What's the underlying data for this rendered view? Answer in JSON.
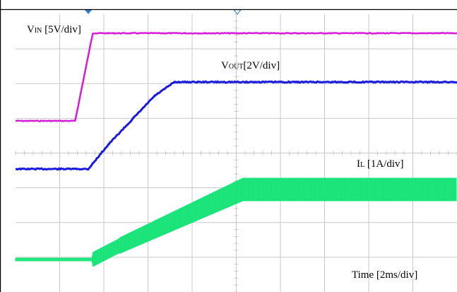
{
  "chart_data": {
    "type": "line",
    "title": "",
    "x_unit": "ms",
    "x_range": [
      0,
      20
    ],
    "grid": true,
    "grid_divisions": {
      "x": 10,
      "y": 8
    },
    "series": [
      {
        "name": "VIN",
        "color": "#d81bd8",
        "scale_per_div": "5V/div",
        "points": [
          [
            0,
            0
          ],
          [
            2.7,
            0
          ],
          [
            3.5,
            5
          ],
          [
            20,
            5
          ]
        ]
      },
      {
        "name": "VOUT",
        "color": "#1a1ae0",
        "scale_per_div": "2V/div",
        "points": [
          [
            0,
            0
          ],
          [
            3.3,
            0
          ],
          [
            4.2,
            1.4
          ],
          [
            6.3,
            4.2
          ],
          [
            7.2,
            5
          ],
          [
            20,
            5
          ]
        ]
      },
      {
        "name": "IL",
        "color": "#1ee87e",
        "scale_per_div": "1A/div",
        "points": [
          [
            0,
            0
          ],
          [
            3.5,
            0
          ],
          [
            4.7,
            0.45
          ],
          [
            10.3,
            2.3
          ],
          [
            20,
            2.3
          ]
        ]
      }
    ]
  },
  "labels": {
    "vin_main": "V",
    "vin_sub": "IN",
    "vin_rest": " [5V/div]",
    "vout_main": "V",
    "vout_sub": "OUT",
    "vout_rest": "[2V/div]",
    "il_main": "I",
    "il_sub": "L",
    "il_rest": " [1A/div]",
    "time": "Time [2ms/div]"
  },
  "colors": {
    "grid": "#c8c8c8",
    "frame": "#000000",
    "marker": "#2a7fd6"
  }
}
